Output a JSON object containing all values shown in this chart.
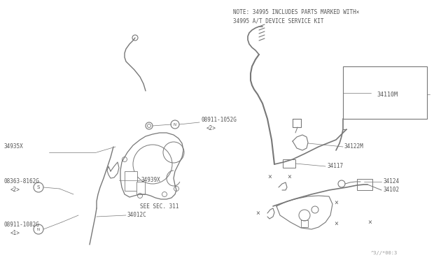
{
  "bg_color": "#ffffff",
  "line_color": "#777777",
  "dark_line": "#444444",
  "text_color": "#555555",
  "note_line1": "NOTE: 34995 INCLUDES PARTS MARKED WITH×",
  "note_line2": "34995 A/T DEVICE SERVICE KIT",
  "diagram_code": "^3//*00:3",
  "fig_w": 6.4,
  "fig_h": 3.72,
  "dpi": 100
}
